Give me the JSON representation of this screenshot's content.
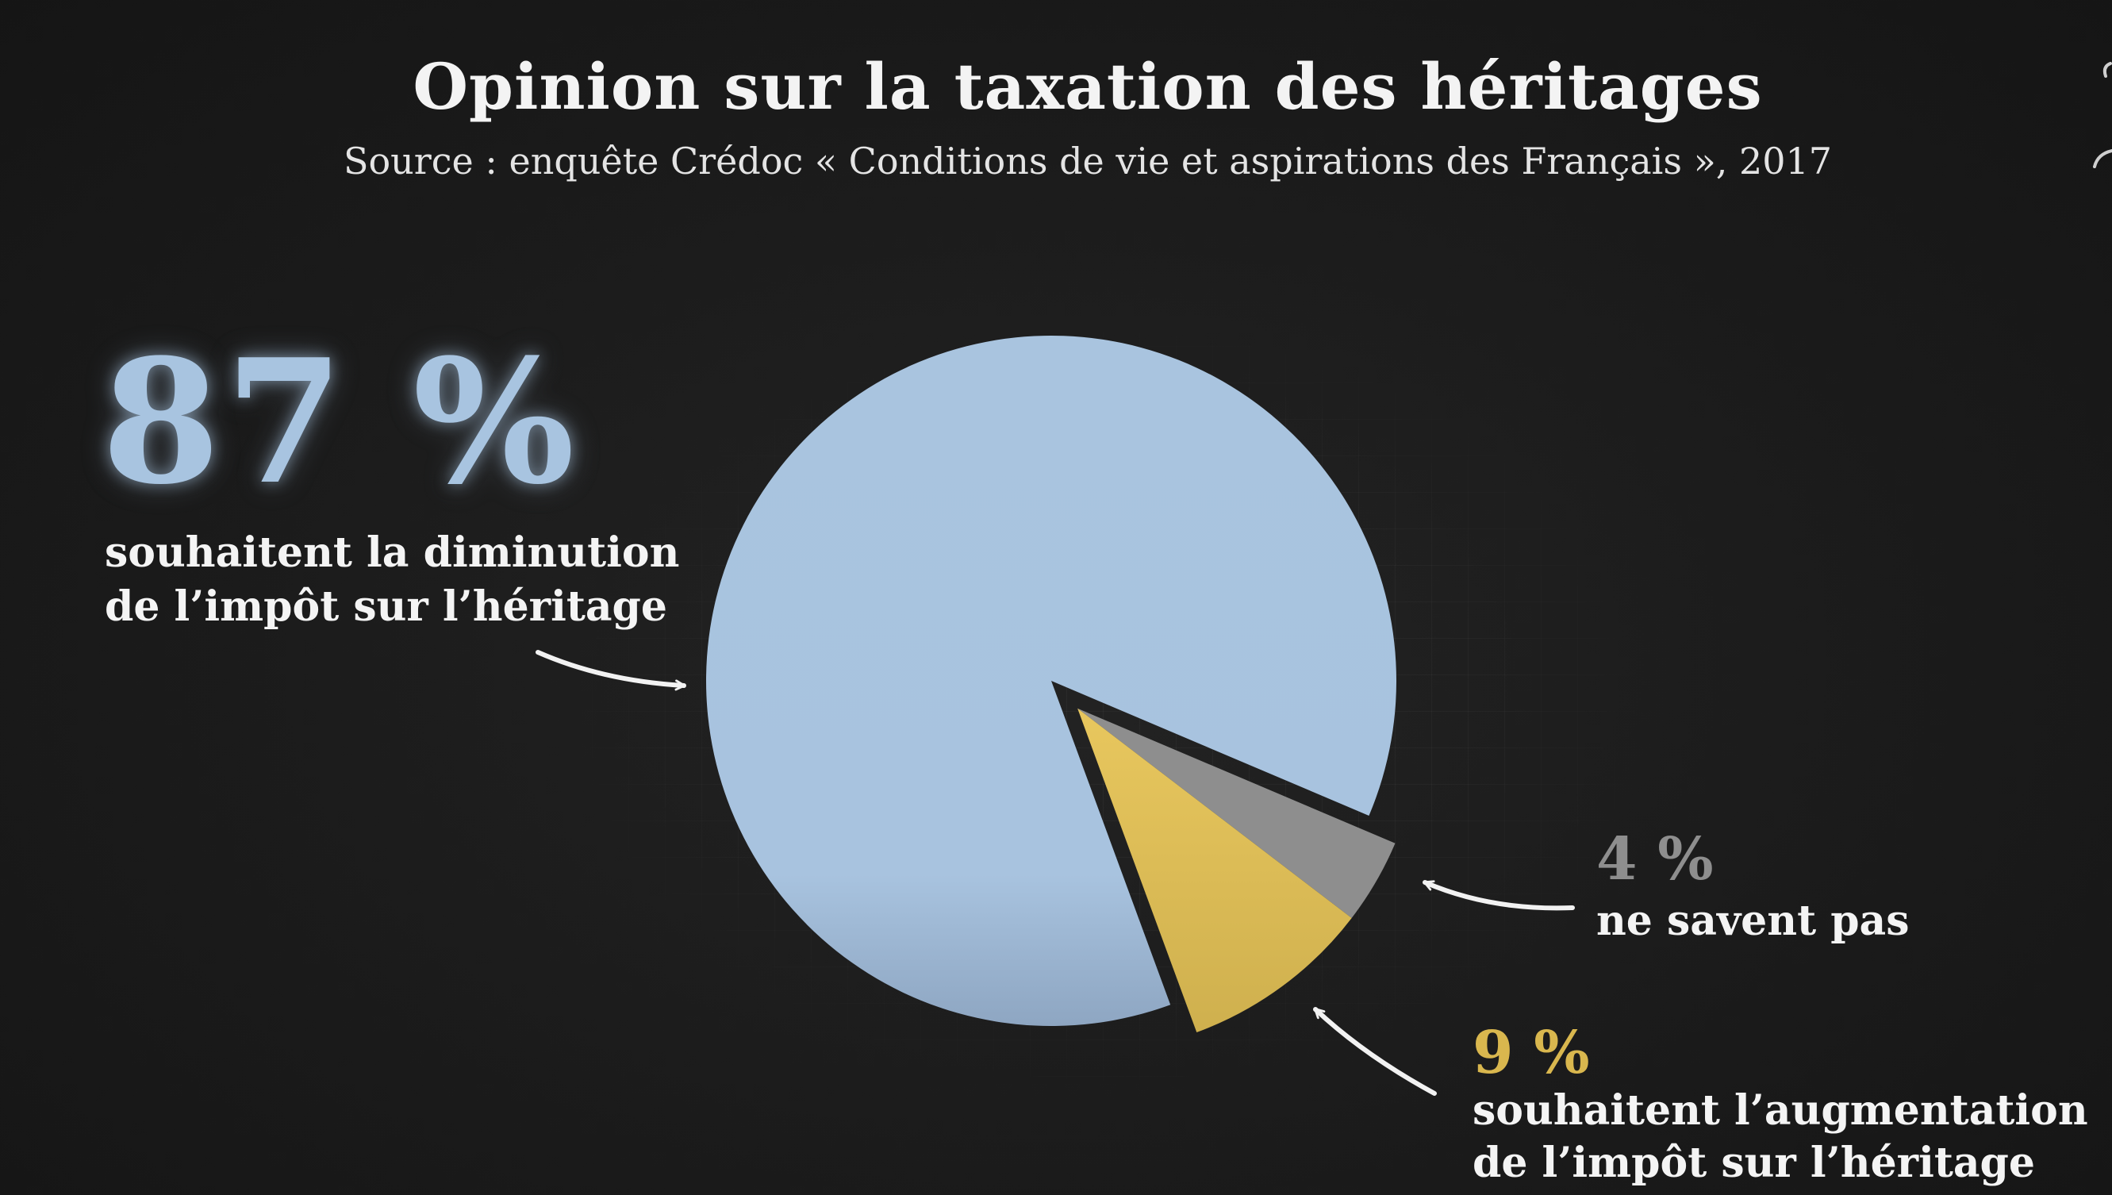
{
  "chart_data": {
    "type": "pie",
    "title": "Opinion sur la taxation des héritages",
    "subtitle": "Source : enquête Crédoc « Conditions de vie et aspirations des Français », 2017",
    "slices": [
      {
        "pct_label": "87 %",
        "value": 87,
        "label_lines": [
          "souhaitent la diminution",
          "de l’impôt sur l’héritage"
        ],
        "color": "#a8c4e0",
        "exploded": false
      },
      {
        "pct_label": "4 %",
        "value": 4,
        "label_lines": [
          "ne savent pas"
        ],
        "color": "#8e8e8e",
        "exploded": true
      },
      {
        "pct_label": "9 %",
        "value": 9,
        "label_lines": [
          "souhaitent l’augmentation",
          "de l’impôt sur l’héritage"
        ],
        "color": "#e2c25d",
        "exploded": true
      }
    ]
  },
  "colors": {
    "background": "#1b1b1b",
    "text": "#f4f4f4",
    "pct_87": "#a8c4e0",
    "pct_4": "#8e8e8e",
    "pct_9": "#d9b74e"
  }
}
